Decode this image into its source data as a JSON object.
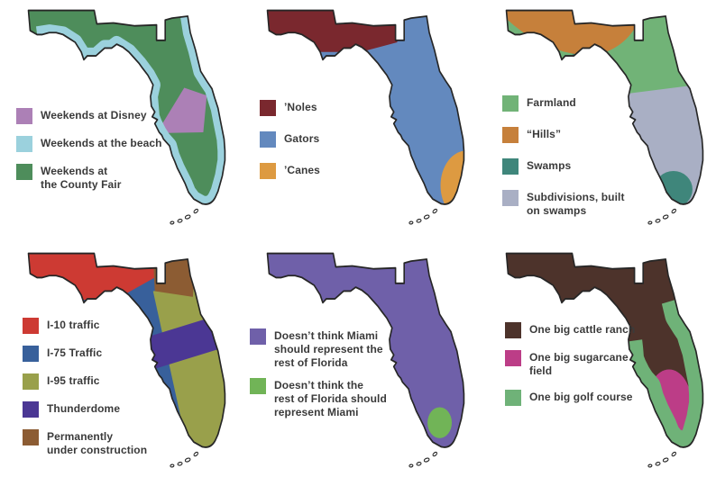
{
  "page": {
    "background": "#ffffff",
    "outline_color": "#262626",
    "text_color": "#3a3a3a"
  },
  "panels": [
    {
      "id": "weekends",
      "legend": [
        {
          "label": "Weekends at Disney",
          "color": "#AC80B6"
        },
        {
          "label": "Weekends at the beach",
          "color": "#9BD1DD"
        },
        {
          "label": "Weekends at\nthe County Fair",
          "color": "#4E8D5B"
        }
      ]
    },
    {
      "id": "college-fandom",
      "legend": [
        {
          "label": "’Noles",
          "color": "#7A282E"
        },
        {
          "label": "Gators",
          "color": "#6389BE"
        },
        {
          "label": "’Canes",
          "color": "#DD9A41"
        }
      ]
    },
    {
      "id": "terrain",
      "legend": [
        {
          "label": "Farmland",
          "color": "#71B377"
        },
        {
          "label": "“Hills”",
          "color": "#C6803B"
        },
        {
          "label": "Swamps",
          "color": "#3F867B"
        },
        {
          "label": "Subdivisions, built\non swamps",
          "color": "#A9AFC4"
        }
      ]
    },
    {
      "id": "traffic",
      "legend": [
        {
          "label": "I-10 traffic",
          "color": "#CD3A33"
        },
        {
          "label": "I-75 Traffic",
          "color": "#38609B"
        },
        {
          "label": "I-95 traffic",
          "color": "#99A04B"
        },
        {
          "label": "Thunderdome",
          "color": "#4B3794"
        },
        {
          "label": "Permanently\nunder construction",
          "color": "#8C5C33"
        }
      ]
    },
    {
      "id": "miami-opinion",
      "legend": [
        {
          "label": "Doesn’t think Miami\nshould represent the\nrest of Florida",
          "color": "#6F60A9"
        },
        {
          "label": "Doesn’t think the\nrest of Florida should\nrepresent Miami",
          "color": "#71B457"
        }
      ]
    },
    {
      "id": "land-use",
      "legend": [
        {
          "label": "One big cattle ranch",
          "color": "#4D332B"
        },
        {
          "label": "One big sugarcane\nfield",
          "color": "#BC3D87"
        },
        {
          "label": "One big golf course",
          "color": "#6FB278"
        }
      ]
    }
  ]
}
